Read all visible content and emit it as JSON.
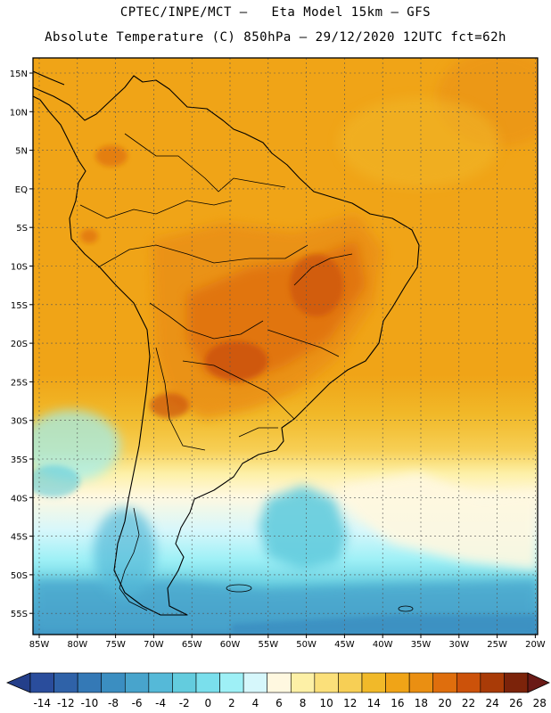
{
  "title": {
    "line1": "CPTEC/INPE/MCT –   Eta Model 15km – GFS",
    "line2": "Absolute Temperature (C) 850hPa – 29/12/2020 12UTC fct=62h"
  },
  "map": {
    "lat_labels": [
      "15N",
      "10N",
      "5N",
      "EQ",
      "5S",
      "10S",
      "15S",
      "20S",
      "25S",
      "30S",
      "35S",
      "40S",
      "45S",
      "50S",
      "55S"
    ],
    "lon_labels": [
      "85W",
      "80W",
      "75W",
      "70W",
      "65W",
      "60W",
      "55W",
      "50W",
      "45W",
      "40W",
      "35W",
      "30W",
      "25W",
      "20W"
    ]
  },
  "colorbar": {
    "labels": [
      "-14",
      "-12",
      "-10",
      "-8",
      "-6",
      "-4",
      "-2",
      "0",
      "2",
      "4",
      "6",
      "8",
      "10",
      "12",
      "14",
      "16",
      "18",
      "20",
      "22",
      "24",
      "26",
      "28"
    ],
    "colors": [
      "#2a4d9c",
      "#2f62a8",
      "#3479b6",
      "#3b8ec1",
      "#48a4cc",
      "#55b9d8",
      "#63ccde",
      "#7adfec",
      "#9ef0f6",
      "#d6f7fb",
      "#fff8e0",
      "#fdf0a6",
      "#fbe07a",
      "#f7cf55",
      "#f1b929",
      "#f0a417",
      "#ea8f12",
      "#df6e0d",
      "#cc520a",
      "#a93b07",
      "#7c230a"
    ]
  }
}
